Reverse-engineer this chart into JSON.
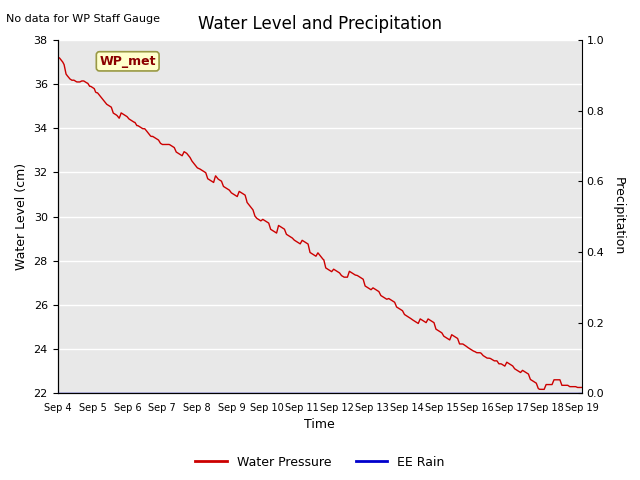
{
  "title": "Water Level and Precipitation",
  "subtitle": "No data for WP Staff Gauge",
  "xlabel": "Time",
  "ylabel_left": "Water Level (cm)",
  "ylabel_right": "Precipitation",
  "annotation_label": "WP_met",
  "ylim_left": [
    22,
    38
  ],
  "ylim_right": [
    0.0,
    1.0
  ],
  "yticks_left": [
    22,
    24,
    26,
    28,
    30,
    32,
    34,
    36,
    38
  ],
  "yticks_right": [
    0.0,
    0.2,
    0.4,
    0.6,
    0.8,
    1.0
  ],
  "xtick_labels": [
    "Sep 4",
    "Sep 5",
    "Sep 6",
    "Sep 7",
    "Sep 8",
    "Sep 9",
    "Sep 10",
    "Sep 11",
    "Sep 12",
    "Sep 13",
    "Sep 14",
    "Sep 15",
    "Sep 16",
    "Sep 17",
    "Sep 18",
    "Sep 19"
  ],
  "background_color": "#e8e8e8",
  "line_color_water": "#cc0000",
  "line_color_rain": "#0000cc",
  "legend_labels": [
    "Water Pressure",
    "EE Rain"
  ],
  "water_x": [
    0.0,
    0.05,
    0.15,
    0.25,
    0.35,
    0.45,
    0.55,
    0.65,
    0.75,
    0.85,
    0.95,
    1.05,
    1.1,
    1.2,
    1.3,
    1.4,
    1.5,
    1.6,
    1.7,
    1.8,
    1.9,
    2.0,
    2.1,
    2.2,
    2.3,
    2.4,
    2.5,
    2.6,
    2.7,
    2.8,
    2.9,
    3.0,
    3.1,
    3.2,
    3.3,
    3.4,
    3.5,
    3.6,
    3.7,
    3.8,
    3.9,
    4.0,
    4.1,
    4.2,
    4.3,
    4.4,
    4.5,
    4.6,
    4.7,
    4.8,
    4.9,
    5.0,
    5.1,
    5.2,
    5.3,
    5.4,
    5.5,
    5.6,
    5.7,
    5.8,
    5.9,
    6.0,
    6.1,
    6.2,
    6.3,
    6.4,
    6.5,
    6.6,
    6.7,
    6.8,
    6.9,
    7.0,
    7.1,
    7.2,
    7.3,
    7.4,
    7.5,
    7.6,
    7.7,
    7.8,
    7.9,
    8.0,
    8.1,
    8.2,
    8.3,
    8.4,
    8.5,
    8.6,
    8.7,
    8.8,
    8.9,
    9.0,
    9.1,
    9.2,
    9.3,
    9.4,
    9.5,
    9.6,
    9.7,
    9.8,
    9.9,
    10.0,
    10.1,
    10.2,
    10.3,
    10.4,
    10.5,
    10.6,
    10.7,
    10.8,
    10.9,
    11.0,
    11.1,
    11.2,
    11.3,
    11.4,
    11.5,
    11.6,
    11.7,
    11.8,
    11.9,
    12.0,
    12.1,
    12.2,
    12.3,
    12.4,
    12.5,
    12.6,
    12.7,
    12.8,
    12.9,
    13.0,
    13.1,
    13.2,
    13.3,
    13.4,
    13.5,
    13.6,
    13.7,
    13.8,
    13.9,
    14.0,
    14.1,
    14.2,
    14.3,
    14.4,
    14.5,
    14.6,
    14.7,
    14.8,
    14.9,
    15.0
  ],
  "water_y": [
    37.0,
    37.0,
    36.8,
    36.5,
    36.3,
    36.2,
    36.1,
    36.1,
    36.1,
    36.0,
    36.0,
    35.9,
    35.7,
    35.5,
    35.3,
    35.1,
    35.0,
    34.9,
    34.8,
    34.6,
    34.5,
    34.4,
    34.3,
    34.2,
    34.2,
    34.1,
    34.0,
    33.8,
    33.6,
    33.5,
    33.4,
    33.3,
    33.3,
    33.3,
    33.2,
    33.1,
    33.0,
    32.9,
    32.8,
    32.6,
    32.4,
    32.2,
    32.1,
    32.0,
    31.9,
    31.8,
    31.7,
    31.5,
    31.4,
    31.3,
    31.2,
    31.1,
    31.0,
    30.9,
    30.8,
    30.7,
    30.5,
    30.3,
    30.1,
    30.0,
    29.9,
    29.8,
    29.7,
    29.6,
    29.5,
    29.4,
    29.3,
    29.2,
    29.1,
    29.0,
    28.9,
    28.8,
    28.7,
    28.6,
    28.5,
    28.4,
    28.2,
    28.0,
    27.9,
    27.8,
    27.7,
    27.6,
    27.5,
    27.4,
    27.4,
    27.3,
    27.2,
    27.1,
    27.0,
    26.9,
    26.8,
    26.7,
    26.6,
    26.5,
    26.4,
    26.3,
    26.2,
    26.1,
    26.0,
    25.9,
    25.8,
    25.7,
    25.6,
    25.5,
    25.4,
    25.3,
    25.2,
    25.1,
    25.0,
    24.9,
    24.8,
    24.7,
    24.6,
    24.5,
    24.4,
    24.3,
    24.2,
    24.2,
    24.1,
    24.0,
    23.9,
    23.8,
    23.8,
    23.7,
    23.6,
    23.6,
    23.5,
    23.5,
    23.5,
    23.4,
    23.3,
    23.2,
    23.1,
    23.0,
    22.9,
    22.8,
    22.7,
    22.6,
    22.5,
    22.4,
    22.4,
    22.4,
    22.4,
    22.4,
    22.4,
    22.4,
    22.4,
    22.4,
    22.4,
    22.4,
    22.4,
    22.4
  ]
}
